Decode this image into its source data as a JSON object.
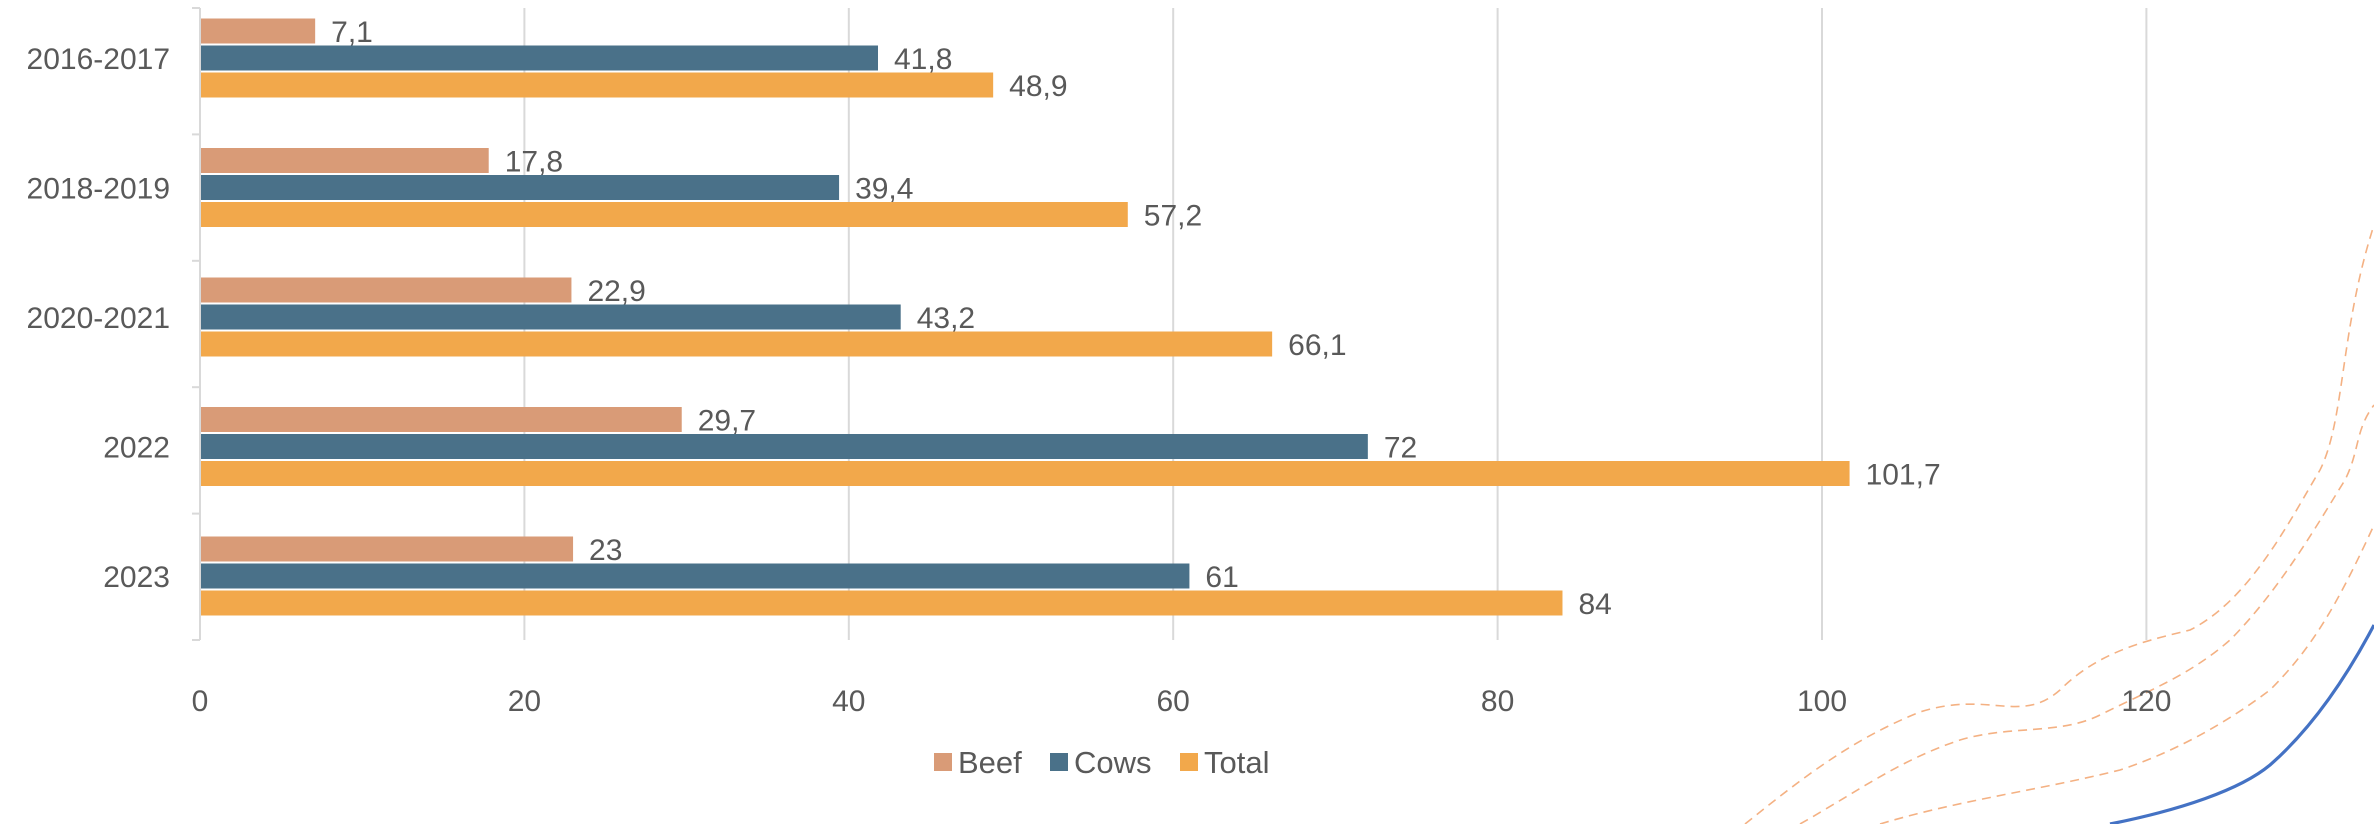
{
  "chart_data": {
    "type": "bar",
    "orientation": "horizontal",
    "categories": [
      "2016-2017",
      "2018-2019",
      "2020-2021",
      "2022",
      "2023"
    ],
    "series": [
      {
        "name": "Beef",
        "color": "#D99B77",
        "values": [
          7.1,
          17.8,
          22.9,
          29.7,
          23
        ],
        "labels": [
          "7,1",
          "17,8",
          "22,9",
          "29,7",
          "23"
        ]
      },
      {
        "name": "Cows",
        "color": "#4A7189",
        "values": [
          41.8,
          39.4,
          43.2,
          72,
          61
        ],
        "labels": [
          "41,8",
          "39,4",
          "43,2",
          "72",
          "61"
        ]
      },
      {
        "name": "Total",
        "color": "#F2A84B",
        "values": [
          48.9,
          57.2,
          66.1,
          101.7,
          84
        ],
        "labels": [
          "48,9",
          "57,2",
          "66,1",
          "101,7",
          "84"
        ]
      }
    ],
    "xlim": [
      0,
      135
    ],
    "x_ticks": [
      0,
      20,
      40,
      60,
      80,
      100,
      120
    ],
    "grid": true,
    "legend_position": "bottom-center",
    "title": "",
    "xlabel": "",
    "ylabel": ""
  }
}
